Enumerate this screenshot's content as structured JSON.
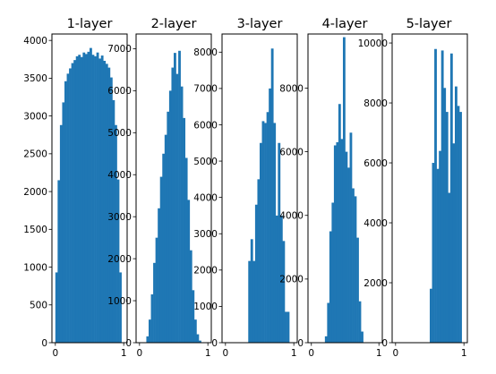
{
  "chart_data": [
    {
      "type": "bar",
      "title": "1-layer",
      "xlim": [
        -0.05,
        1.05
      ],
      "ylim": [
        0,
        4085
      ],
      "xticks": [
        0,
        1
      ],
      "yticks": [
        0,
        500,
        1000,
        1500,
        2000,
        2500,
        3000,
        3500,
        4000
      ],
      "bin_edges": [
        0.0,
        0.0333,
        0.0667,
        0.1,
        0.1333,
        0.1667,
        0.2,
        0.2333,
        0.2667,
        0.3,
        0.3333,
        0.3667,
        0.4,
        0.4333,
        0.4667,
        0.5,
        0.5333,
        0.5667,
        0.6,
        0.6333,
        0.6667,
        0.7,
        0.7333,
        0.7667,
        0.8,
        0.8333,
        0.8667,
        0.9,
        0.9333,
        0.9667,
        1.0
      ],
      "values": [
        930,
        2150,
        2880,
        3180,
        3460,
        3560,
        3630,
        3700,
        3740,
        3790,
        3810,
        3780,
        3840,
        3820,
        3850,
        3900,
        3810,
        3790,
        3840,
        3760,
        3800,
        3730,
        3690,
        3640,
        3510,
        3210,
        2880,
        2160,
        930,
        0
      ]
    },
    {
      "type": "bar",
      "title": "2-layer",
      "xlim": [
        -0.05,
        1.05
      ],
      "ylim": [
        0,
        7350
      ],
      "xticks": [
        0,
        1
      ],
      "yticks": [
        0,
        1000,
        2000,
        3000,
        4000,
        5000,
        6000,
        7000
      ],
      "bin_edges": [
        0.0,
        0.0333,
        0.0667,
        0.1,
        0.1333,
        0.1667,
        0.2,
        0.2333,
        0.2667,
        0.3,
        0.3333,
        0.3667,
        0.4,
        0.4333,
        0.4667,
        0.5,
        0.5333,
        0.5667,
        0.6,
        0.6333,
        0.6667,
        0.7,
        0.7333,
        0.7667,
        0.8,
        0.8333,
        0.8667,
        0.9,
        0.9333,
        0.9667,
        1.0
      ],
      "values": [
        0,
        0,
        0,
        150,
        550,
        1150,
        1900,
        2500,
        3200,
        3950,
        4500,
        4950,
        5500,
        6000,
        6550,
        6900,
        6400,
        6950,
        6100,
        5350,
        4400,
        3400,
        2200,
        1250,
        550,
        200,
        50,
        0,
        0,
        0
      ]
    },
    {
      "type": "bar",
      "title": "3-layer",
      "xlim": [
        -0.05,
        1.05
      ],
      "ylim": [
        0,
        8500
      ],
      "xticks": [
        0,
        1
      ],
      "yticks": [
        0,
        1000,
        2000,
        3000,
        4000,
        5000,
        6000,
        7000,
        8000
      ],
      "bin_edges": [
        0.0,
        0.0333,
        0.0667,
        0.1,
        0.1333,
        0.1667,
        0.2,
        0.2333,
        0.2667,
        0.3,
        0.3333,
        0.3667,
        0.4,
        0.4333,
        0.4667,
        0.5,
        0.5333,
        0.5667,
        0.6,
        0.6333,
        0.6667,
        0.7,
        0.7333,
        0.7667,
        0.8,
        0.8333,
        0.8667,
        0.9,
        0.9333,
        0.9667,
        1.0
      ],
      "values": [
        0,
        0,
        0,
        0,
        0,
        0,
        0,
        0,
        0,
        0,
        2250,
        2850,
        2250,
        3800,
        4500,
        5500,
        6100,
        6050,
        6350,
        7000,
        8100,
        6050,
        3500,
        5500,
        3500,
        2800,
        850,
        850,
        0,
        0
      ]
    },
    {
      "type": "bar",
      "title": "4-layer",
      "xlim": [
        -0.05,
        1.05
      ],
      "ylim": [
        0,
        9700
      ],
      "xticks": [
        0,
        1
      ],
      "yticks": [
        0,
        2000,
        4000,
        6000,
        8000
      ],
      "bin_edges": [
        0.0,
        0.0333,
        0.0667,
        0.1,
        0.1333,
        0.1667,
        0.2,
        0.2333,
        0.2667,
        0.3,
        0.3333,
        0.3667,
        0.4,
        0.4333,
        0.4667,
        0.5,
        0.5333,
        0.5667,
        0.6,
        0.6333,
        0.6667,
        0.7,
        0.7333,
        0.7667,
        0.8,
        0.8333,
        0.8667,
        0.9,
        0.9333,
        0.9667,
        1.0
      ],
      "values": [
        0,
        0,
        0,
        0,
        0,
        0,
        200,
        1250,
        3500,
        4400,
        6200,
        6300,
        7500,
        6400,
        9600,
        6000,
        5500,
        6600,
        4850,
        4600,
        3300,
        1300,
        350,
        0,
        0,
        0,
        0,
        0,
        0,
        0
      ]
    },
    {
      "type": "bar",
      "title": "5-layer",
      "xlim": [
        -0.05,
        1.05
      ],
      "ylim": [
        0,
        10300
      ],
      "xticks": [
        0,
        1
      ],
      "yticks": [
        0,
        2000,
        4000,
        6000,
        8000,
        10000
      ],
      "bin_edges": [
        0.0,
        0.0333,
        0.0667,
        0.1,
        0.1333,
        0.1667,
        0.2,
        0.2333,
        0.2667,
        0.3,
        0.3333,
        0.3667,
        0.4,
        0.4333,
        0.4667,
        0.5,
        0.5333,
        0.5667,
        0.6,
        0.6333,
        0.6667,
        0.7,
        0.7333,
        0.7667,
        0.8,
        0.8333,
        0.8667,
        0.9,
        0.9333,
        0.9667,
        1.0
      ],
      "values": [
        0,
        0,
        0,
        0,
        0,
        0,
        0,
        0,
        0,
        0,
        0,
        0,
        0,
        0,
        0,
        1800,
        6000,
        9800,
        5800,
        6400,
        9750,
        8500,
        7700,
        5000,
        9650,
        6650,
        8550,
        7900,
        7700,
        0
      ]
    }
  ],
  "colors": {
    "bar": "#1f77b4",
    "frame": "#000000",
    "background": "#ffffff"
  }
}
